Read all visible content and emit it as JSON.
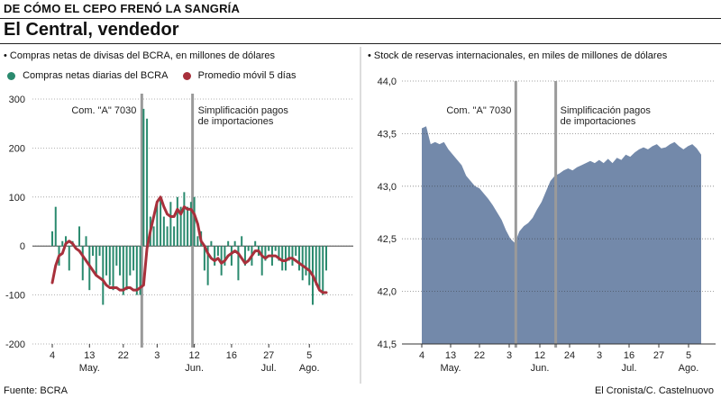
{
  "header": {
    "kicker": "DE CÓMO EL CEPO FRENÓ LA SANGRÍA",
    "title": "El Central, vendedor"
  },
  "footer": {
    "source": "Fuente: BCRA",
    "credit": "El Cronista/C. Castelnuovo"
  },
  "colors": {
    "bars": "#2a8a6e",
    "avg_line": "#a8303b",
    "area": "#7389aa",
    "event_line": "#9a9a9a"
  },
  "chart_data": [
    {
      "type": "bar",
      "subtitle": "Compras netas de divisas del BCRA, en millones de dólares",
      "legend": [
        "Compras netas diarias del BCRA",
        "Promedio móvil 5 días"
      ],
      "ylim": [
        -200,
        300
      ],
      "yticks": [
        "300",
        "200",
        "100",
        "0",
        "-100",
        "-200"
      ],
      "xtick_labels": [
        "4",
        "13",
        "22",
        "3",
        "12",
        "16",
        "27",
        "5"
      ],
      "month_labels": [
        "May.",
        "Jun.",
        "Jul.",
        "Ago."
      ],
      "annotations": [
        "Com. \"A\" 7030",
        "Simplificación pagos",
        "de importaciones"
      ],
      "series": [
        {
          "name": "Compras netas diarias del BCRA",
          "values": [
            30,
            80,
            -40,
            10,
            20,
            -50,
            10,
            0,
            40,
            -70,
            20,
            -90,
            -20,
            -60,
            -20,
            -120,
            -60,
            -80,
            -90,
            -40,
            -60,
            -100,
            -90,
            -60,
            -50,
            -100,
            -100,
            280,
            260,
            60,
            40,
            90,
            100,
            60,
            40,
            90,
            40,
            100,
            80,
            110,
            80,
            90,
            100,
            20,
            30,
            -50,
            -80,
            10,
            -40,
            -20,
            -60,
            -40,
            10,
            -40,
            10,
            -70,
            20,
            -40,
            -10,
            -40,
            10,
            -20,
            -60,
            -30,
            -10,
            -40,
            -10,
            -30,
            -50,
            -50,
            -30,
            -40,
            -20,
            -50,
            -70,
            -60,
            -80,
            -120,
            -80,
            -90,
            -100,
            -50
          ]
        },
        {
          "name": "Promedio móvil 5 días",
          "values": [
            -75,
            -40,
            -20,
            -15,
            5,
            10,
            5,
            -5,
            -10,
            -20,
            -30,
            -40,
            -50,
            -60,
            -65,
            -70,
            -80,
            -85,
            -85,
            -85,
            -90,
            -90,
            -85,
            -85,
            -90,
            -90,
            -85,
            -80,
            -5,
            30,
            60,
            90,
            100,
            80,
            65,
            60,
            60,
            75,
            65,
            80,
            75,
            75,
            65,
            45,
            10,
            0,
            -15,
            -25,
            -30,
            -25,
            -35,
            -30,
            -20,
            -15,
            -10,
            -15,
            -25,
            -35,
            -30,
            -20,
            -10,
            -10,
            -20,
            -25,
            -20,
            -20,
            -20,
            -25,
            -30,
            -30,
            -25,
            -25,
            -30,
            -35,
            -40,
            -45,
            -50,
            -60,
            -75,
            -90,
            -95,
            -95
          ]
        }
      ]
    },
    {
      "type": "area",
      "subtitle": "Stock de reservas internacionales, en miles de millones de dólares",
      "ylim": [
        41.5,
        44.0
      ],
      "yticks": [
        "44,0",
        "43,5",
        "43,0",
        "42,5",
        "42,0",
        "41,5"
      ],
      "xtick_labels": [
        "4",
        "13",
        "22",
        "3",
        "12",
        "24",
        "3",
        "16",
        "27",
        "5"
      ],
      "month_labels": [
        "May.",
        "Jun.",
        "Jul.",
        "Ago."
      ],
      "annotations": [
        "Com. \"A\" 7030",
        "Simplificación pagos",
        "de importaciones"
      ],
      "series": [
        {
          "name": "",
          "values": [
            43.55,
            43.57,
            43.4,
            43.42,
            43.4,
            43.42,
            43.35,
            43.3,
            43.25,
            43.2,
            43.1,
            43.05,
            43.0,
            42.98,
            42.93,
            42.88,
            42.82,
            42.75,
            42.68,
            42.58,
            42.5,
            42.46,
            42.57,
            42.62,
            42.65,
            42.7,
            42.78,
            42.85,
            42.95,
            43.05,
            43.1,
            43.12,
            43.15,
            43.17,
            43.15,
            43.18,
            43.2,
            43.22,
            43.24,
            43.22,
            43.25,
            43.22,
            43.26,
            43.22,
            43.27,
            43.25,
            43.3,
            43.28,
            43.32,
            43.35,
            43.37,
            43.35,
            43.38,
            43.4,
            43.36,
            43.37,
            43.4,
            43.42,
            43.38,
            43.35,
            43.38,
            43.4,
            43.36,
            43.3
          ]
        }
      ]
    }
  ]
}
